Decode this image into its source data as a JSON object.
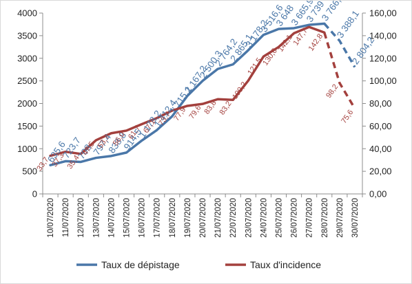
{
  "chart_data": {
    "type": "line",
    "categories": [
      "10/07/2020",
      "11/07/2020",
      "12/07/2020",
      "13/07/2020",
      "14/07/2020",
      "15/07/2020",
      "16/07/2020",
      "17/07/2020",
      "18/07/2020",
      "19/07/2020",
      "20/07/2020",
      "21/07/2020",
      "22/07/2020",
      "23/07/2020",
      "24/07/2020",
      "25/07/2020",
      "26/07/2020",
      "27/07/2020",
      "28/07/2020",
      "29/07/2020",
      "30/07/2020"
    ],
    "y_left": {
      "min": 0,
      "max": 4000,
      "step": 500,
      "ticks": [
        "0",
        "500",
        "1000",
        "1500",
        "2000",
        "2500",
        "3000",
        "3500",
        "4000"
      ]
    },
    "y_right": {
      "min": 0,
      "max": 160,
      "step": 20,
      "ticks": [
        "0,00",
        "20,00",
        "40,00",
        "60,00",
        "80,00",
        "100,00",
        "120,00",
        "140,00",
        "160,00"
      ]
    },
    "grid": false,
    "legend_position": "bottom",
    "series": [
      {
        "name": "Taux de dépistage",
        "axis": "left",
        "color": "#4a77a8",
        "dashed_from_index": 18,
        "values": [
          635.6,
          723.7,
          708.0,
          797.4,
          838.8,
          914.5,
          1178.2,
          1412.4,
          1715.1,
          2167.2,
          2500.3,
          2764.2,
          2865.1,
          3178.2,
          3516.6,
          3648.0,
          3665.9,
          3739.0,
          3766.6,
          3388.1,
          2804.2
        ],
        "labels": [
          "635,6",
          "723,7",
          "708",
          "797,4",
          "838,8",
          "914,5",
          "1 178,2",
          "1 412,4",
          "1 715,1",
          "2 167,2",
          "2 500,3",
          "2 764,2",
          "2 865,1",
          "3 178,2",
          "3 516,6",
          "3 648",
          "3 665,9",
          "3 739",
          "3 766,6",
          "3 388,1",
          "2 804,2"
        ]
      },
      {
        "name": "Taux d'incidence",
        "axis": "right",
        "color": "#a3403d",
        "dashed_from_index": 18,
        "values": [
          33.7,
          37.3,
          35.4,
          47.5,
          53.7,
          56.0,
          61.7,
          67.1,
          73.7,
          77.9,
          79.6,
          83.8,
          83.2,
          100.2,
          121.5,
          130.0,
          142.1,
          147.7,
          142.8,
          98.2,
          75.6
        ],
        "labels": [
          "33,7",
          "37,3",
          "35,4",
          "47,5",
          "53,7",
          "56,0",
          "61,7",
          "67,1",
          "73,7",
          "77,9",
          "79,6",
          "83,8",
          "83,2",
          "100,2",
          "121,5",
          "130,0",
          "142,1",
          "147,7",
          "142,8",
          "98,2",
          "75,6"
        ]
      }
    ]
  }
}
